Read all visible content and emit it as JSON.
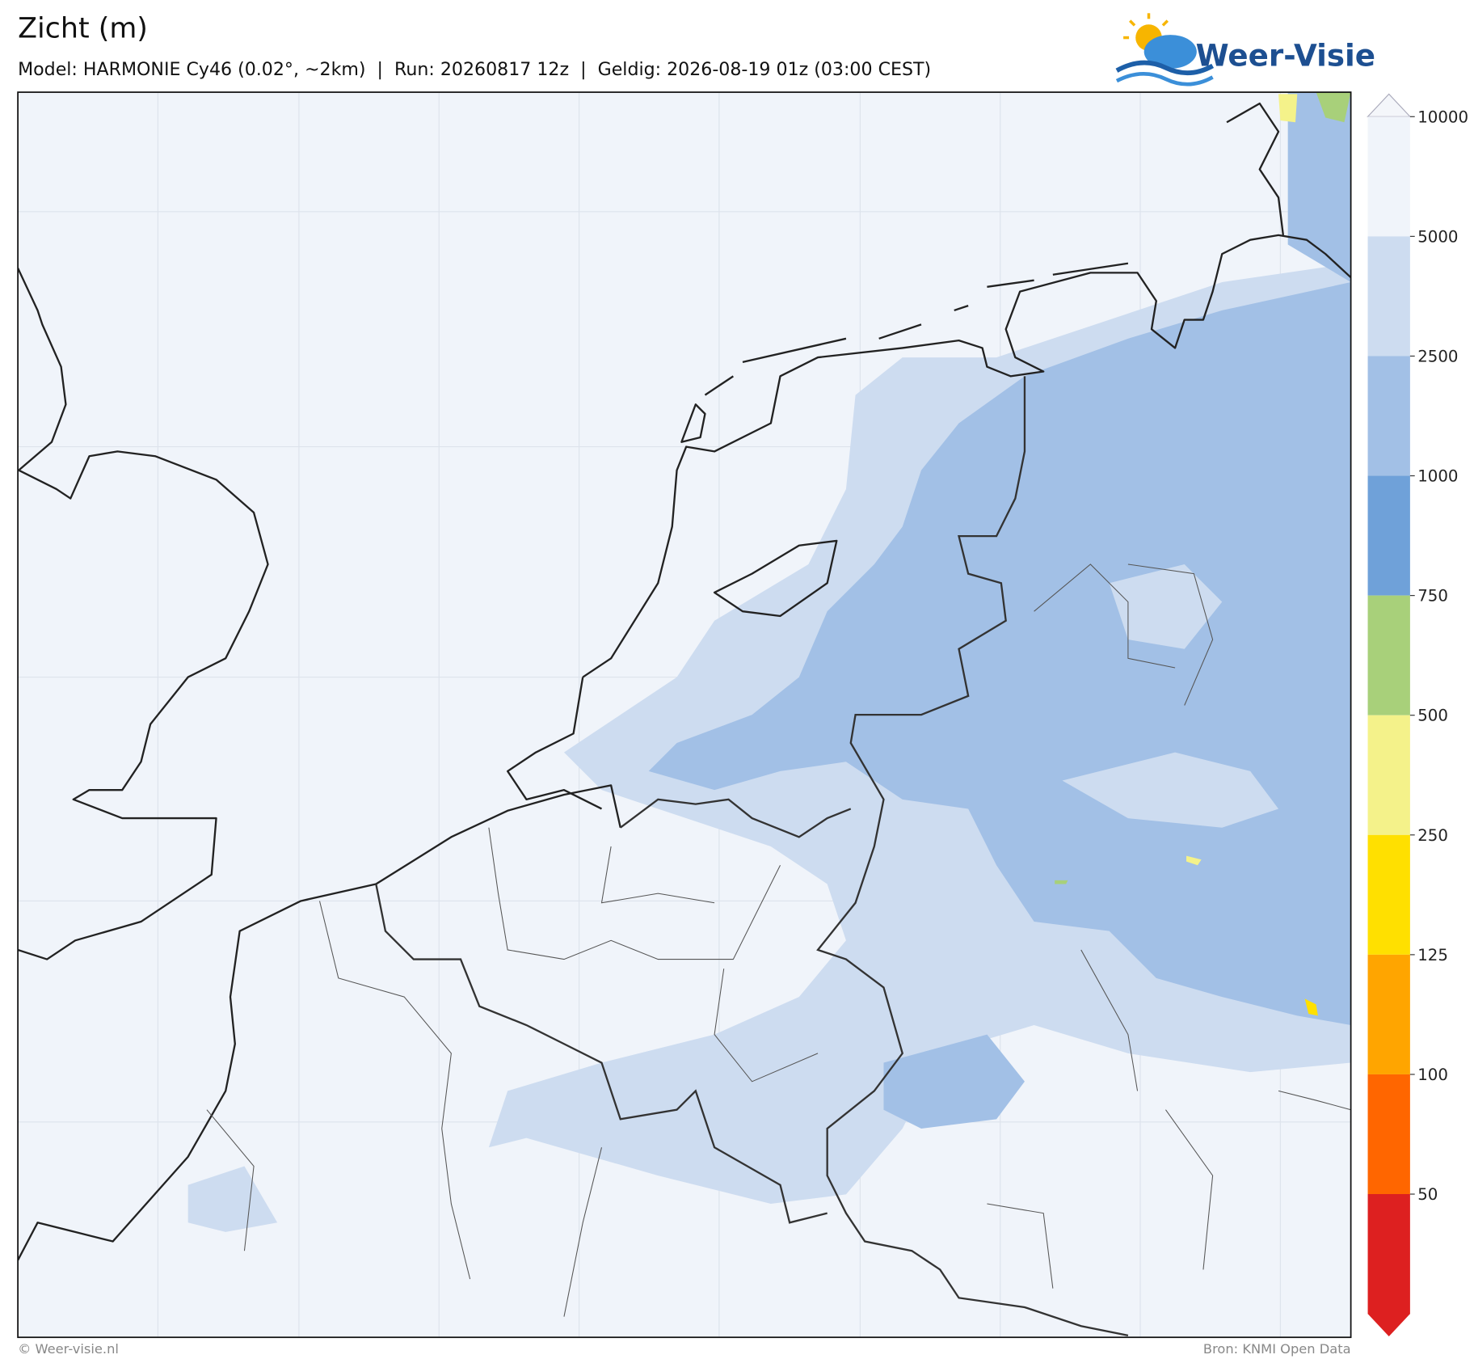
{
  "header": {
    "title": "Zicht (m)",
    "subtitle": "Model: HARMONIE Cy46 (0.02°, ~2km)  |  Run: 20260817 12z  |  Geldig: 2026-08-19 01z (03:00 CEST)",
    "logo": "Weer-Visie"
  },
  "colorbar": {
    "levels": [
      10000,
      5000,
      2500,
      1000,
      750,
      500,
      250,
      125,
      100,
      50
    ],
    "colors": [
      "#f0f4fa",
      "#cddcf0",
      "#a2c0e6",
      "#6fa1d9",
      "#a8d07a",
      "#f4f28a",
      "#ffe000",
      "#ffa500",
      "#ff6600"
    ],
    "over_color": "#f4f6fa",
    "under_color": "#dd2020"
  },
  "footer": {
    "left": "© Weer-visie.nl",
    "right": "Bron: KNMI Open Data"
  }
}
